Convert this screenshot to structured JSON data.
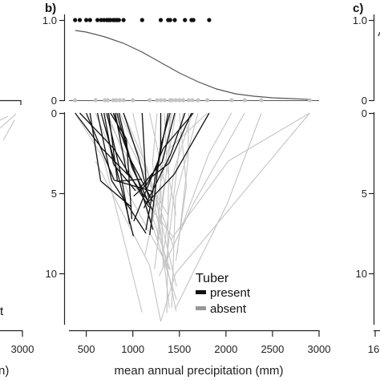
{
  "chart_data": [
    {
      "panel": "a",
      "type": "line",
      "partial": true,
      "x_tick_labels": [
        "3000"
      ],
      "xlabel_fragment": "n)",
      "legend_fragment": "t"
    },
    {
      "panel": "b",
      "panel_label": "b)",
      "type": "scatter",
      "xlabel": "mean annual precipitation (mm)",
      "x_ticks": [
        500,
        1000,
        1500,
        2000,
        2500,
        3000
      ],
      "top_y_ticks": [
        "1.0",
        "0"
      ],
      "bottom_y_ticks": [
        "0",
        "5",
        "10"
      ],
      "x_range": [
        300,
        3000
      ],
      "bottom_y_range": [
        0,
        13.5
      ],
      "present_points": [
        380,
        430,
        500,
        540,
        620,
        660,
        690,
        720,
        740,
        760,
        790,
        810,
        830,
        850,
        900,
        1100,
        1300,
        1380,
        1400,
        1450,
        1560,
        1630,
        1650,
        1820
      ],
      "absent_points": [
        380,
        600,
        700,
        730,
        790,
        820,
        860,
        900,
        1000,
        1180,
        1260,
        1300,
        1340,
        1400,
        1420,
        1460,
        1500,
        1540,
        1600,
        1640,
        1700,
        1800,
        2060,
        2200,
        2380,
        2900
      ],
      "fit_curve": {
        "x": [
          380,
          500,
          700,
          900,
          1100,
          1300,
          1500,
          1700,
          1900,
          2100,
          2300,
          2500,
          2700,
          2900
        ],
        "y": [
          0.87,
          0.85,
          0.79,
          0.71,
          0.6,
          0.47,
          0.34,
          0.23,
          0.14,
          0.08,
          0.05,
          0.03,
          0.02,
          0.01
        ]
      },
      "legend": {
        "title": "Tuber",
        "items": [
          {
            "label": "present",
            "color": "#111111"
          },
          {
            "label": "absent",
            "color": "#999999"
          }
        ]
      },
      "colors": {
        "present": "#111111",
        "absent": "#c4c4c4",
        "curve": "#555555"
      }
    },
    {
      "panel": "c",
      "panel_label": "c)",
      "type": "scatter",
      "partial": true,
      "top_y_ticks": [
        "1.0",
        "0"
      ],
      "bottom_y_ticks": [
        "0",
        "5",
        "10"
      ],
      "x_tick_labels": [
        "16"
      ]
    }
  ]
}
